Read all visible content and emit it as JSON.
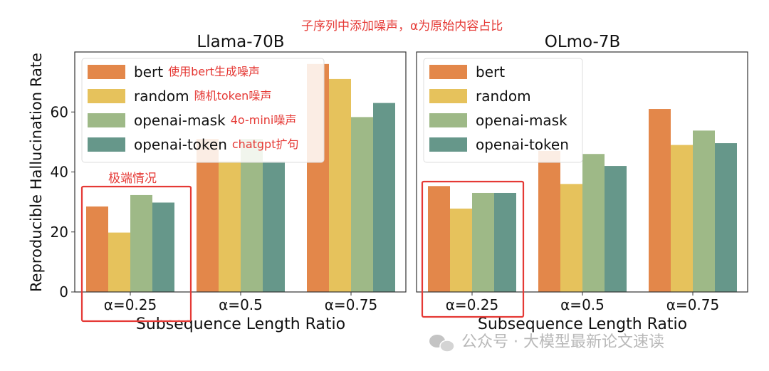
{
  "top_annotation": "子序列中添加噪声，α为原始内容占比",
  "box_annotation": "极端情况",
  "watermark": "公众号 · 大模型最新论文速读",
  "legend_notes": [
    "使用bert生成噪声",
    "随机token噪声",
    "4o-mini噪声",
    "chatgpt扩句"
  ],
  "chart_data": [
    {
      "type": "bar",
      "title": "Llama-70B",
      "xlabel": "Subsequence Length Ratio",
      "ylabel": "Reproducible Hallucination Rate",
      "categories": [
        "α=0.25",
        "α=0.5",
        "α=0.75"
      ],
      "ylim": [
        0,
        80
      ],
      "yticks": [
        0,
        20,
        40,
        60
      ],
      "legend": "top-left",
      "series": [
        {
          "name": "bert",
          "color": "#e3874a",
          "values": [
            28.5,
            51,
            76
          ]
        },
        {
          "name": "random",
          "color": "#e6c25c",
          "values": [
            19.8,
            43.5,
            71
          ]
        },
        {
          "name": "openai-mask",
          "color": "#9eb987",
          "values": [
            32.3,
            51,
            58.3
          ]
        },
        {
          "name": "openai-token",
          "color": "#66978a",
          "values": [
            29.8,
            43.5,
            63
          ]
        }
      ]
    },
    {
      "type": "bar",
      "title": "OLmo-7B",
      "xlabel": "Subsequence Length Ratio",
      "ylabel": "",
      "categories": [
        "α=0.25",
        "α=0.5",
        "α=0.75"
      ],
      "ylim": [
        0,
        80
      ],
      "yticks": [
        0,
        20,
        40,
        60
      ],
      "legend": "top-left",
      "series": [
        {
          "name": "bert",
          "color": "#e3874a",
          "values": [
            35.3,
            47,
            61
          ]
        },
        {
          "name": "random",
          "color": "#e6c25c",
          "values": [
            27.8,
            36,
            49
          ]
        },
        {
          "name": "openai-mask",
          "color": "#9eb987",
          "values": [
            33,
            46,
            53.8
          ]
        },
        {
          "name": "openai-token",
          "color": "#66978a",
          "values": [
            33,
            42,
            49.6
          ]
        }
      ]
    }
  ]
}
